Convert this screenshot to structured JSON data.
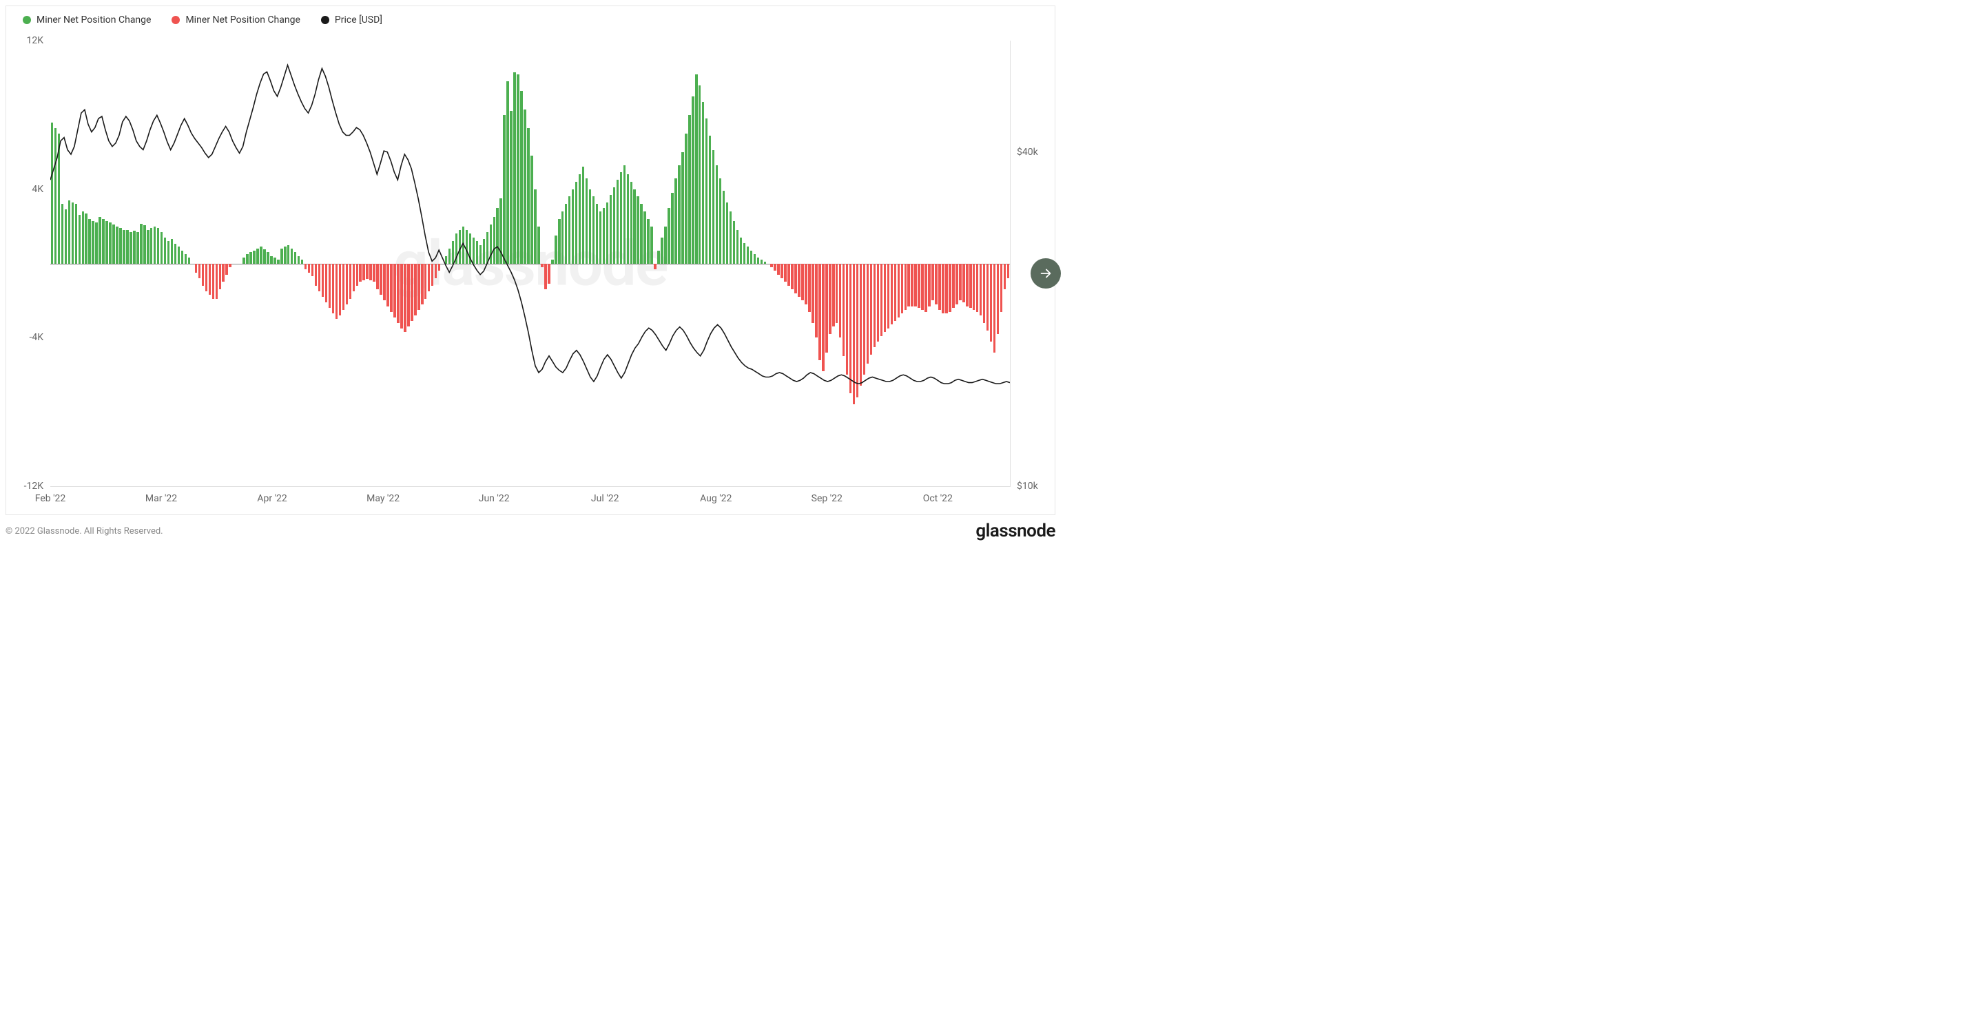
{
  "legend": {
    "items": [
      {
        "label": "Miner Net Position Change",
        "color": "#4caf50"
      },
      {
        "label": "Miner Net Position Change",
        "color": "#ef5350"
      },
      {
        "label": "Price [USD]",
        "color": "#1a1a1a"
      }
    ]
  },
  "chart": {
    "type": "bar+line",
    "background_color": "#ffffff",
    "border_color": "#e6e6e6",
    "watermark_text": "glassnode",
    "watermark_color": "#f1f1f1",
    "zero_line_color": "#888888",
    "left_axis": {
      "min": -12000,
      "max": 12000,
      "ticks": [
        {
          "value": 12000,
          "label": "12K"
        },
        {
          "value": 4000,
          "label": "4K"
        },
        {
          "value": -4000,
          "label": "-4K"
        },
        {
          "value": -12000,
          "label": "-12K"
        }
      ],
      "tick_color": "#666666",
      "tick_fontsize": 14
    },
    "right_axis": {
      "min": 10000,
      "max": 50000,
      "ticks": [
        {
          "value": 40000,
          "label": "$40k"
        },
        {
          "value": 10000,
          "label": "$10k"
        }
      ],
      "tick_color": "#666666",
      "tick_fontsize": 14
    },
    "x_axis": {
      "labels": [
        "Feb '22",
        "Mar '22",
        "Apr '22",
        "May '22",
        "Jun '22",
        "Jul '22",
        "Aug '22",
        "Sep '22",
        "Oct '22"
      ],
      "count_days": 260,
      "tick_color": "#666666",
      "tick_fontsize": 14
    },
    "bar_colors": {
      "positive": "#4caf50",
      "negative": "#ef5350"
    },
    "bar_values": [
      7600,
      7300,
      7000,
      3200,
      2900,
      3400,
      3300,
      3200,
      2600,
      2800,
      2700,
      2400,
      2300,
      2200,
      2500,
      2400,
      2300,
      2200,
      2100,
      2000,
      1900,
      1800,
      1800,
      1700,
      1750,
      1700,
      2150,
      2050,
      1800,
      1900,
      2000,
      1900,
      1700,
      1400,
      1200,
      1300,
      1050,
      900,
      700,
      500,
      300,
      0,
      -500,
      -800,
      -1200,
      -1500,
      -1700,
      -1900,
      -1900,
      -1400,
      -1000,
      -600,
      -200,
      0,
      0,
      0,
      300,
      500,
      600,
      700,
      800,
      900,
      750,
      600,
      400,
      300,
      200,
      800,
      900,
      1000,
      800,
      600,
      400,
      200,
      -300,
      -500,
      -700,
      -1200,
      -1500,
      -1800,
      -2100,
      -2400,
      -2700,
      -3000,
      -2800,
      -2500,
      -2200,
      -1900,
      -1500,
      -1200,
      -1000,
      -900,
      -850,
      -900,
      -1000,
      -1400,
      -1700,
      -2000,
      -2300,
      -2600,
      -2900,
      -3200,
      -3500,
      -3700,
      -3400,
      -3100,
      -2800,
      -2500,
      -2200,
      -1900,
      -1500,
      -1200,
      -800,
      -400,
      0,
      400,
      800,
      1200,
      1600,
      1800,
      2000,
      1800,
      1600,
      1400,
      1200,
      1000,
      1300,
      1700,
      2100,
      2500,
      3000,
      3500,
      8000,
      9800,
      8200,
      10300,
      10200,
      9300,
      8300,
      7300,
      5800,
      4000,
      2000,
      -200,
      -1400,
      -1100,
      200,
      1500,
      2400,
      2800,
      3200,
      3600,
      4000,
      4400,
      4800,
      5200,
      4600,
      4000,
      3600,
      3200,
      2800,
      3000,
      3300,
      3700,
      4100,
      4500,
      4900,
      5300,
      4800,
      4400,
      4000,
      3600,
      3200,
      2800,
      2400,
      2000,
      -300,
      700,
      1400,
      2000,
      3000,
      3800,
      4600,
      5300,
      6000,
      7000,
      8000,
      9000,
      10200,
      9600,
      8700,
      7800,
      6900,
      6100,
      5300,
      4600,
      3900,
      3300,
      2800,
      2300,
      1800,
      1400,
      1100,
      900,
      700,
      500,
      300,
      200,
      100,
      0,
      -200,
      -400,
      -600,
      -800,
      -1000,
      -1200,
      -1400,
      -1600,
      -1800,
      -2000,
      -2200,
      -2600,
      -3200,
      -4000,
      -5200,
      -5800,
      -4800,
      -3800,
      -3400,
      -3200,
      -4000,
      -5000,
      -6000,
      -7000,
      -7600,
      -7200,
      -6600,
      -6000,
      -5400,
      -4900,
      -4500,
      -4200,
      -3900,
      -3700,
      -3500,
      -3300,
      -3100,
      -2900,
      -2700,
      -2500,
      -2300,
      -2300,
      -2300,
      -2400,
      -2500,
      -2600,
      -2300,
      -2000,
      -2200,
      -2500,
      -2700,
      -2700,
      -2600,
      -2400,
      -2200,
      -2000,
      -2100,
      -2300,
      -2400,
      -2500,
      -2600,
      -2800,
      -3200,
      -3600,
      -4200,
      -4800,
      -3800,
      -2600,
      -1400,
      -800
    ],
    "price_values": [
      37500,
      38500,
      39500,
      41000,
      41300,
      40200,
      39800,
      40500,
      42000,
      43500,
      43800,
      42500,
      41800,
      42200,
      43000,
      43200,
      42000,
      41000,
      40500,
      40800,
      41500,
      42700,
      43200,
      42800,
      42000,
      41000,
      40500,
      40200,
      41000,
      42000,
      42800,
      43300,
      42600,
      41800,
      40900,
      40200,
      40800,
      41600,
      42400,
      43000,
      42400,
      41700,
      41200,
      40800,
      40400,
      39900,
      39500,
      39800,
      40500,
      41200,
      41800,
      42300,
      41800,
      41000,
      40400,
      39900,
      40500,
      41800,
      42900,
      44000,
      45200,
      46200,
      47000,
      47200,
      46400,
      45500,
      45000,
      45800,
      46800,
      47800,
      46900,
      46000,
      45200,
      44500,
      43900,
      43500,
      44200,
      45200,
      46500,
      47500,
      46800,
      45800,
      44600,
      43500,
      42500,
      41800,
      41500,
      41500,
      41800,
      42200,
      42000,
      41500,
      40800,
      40000,
      39000,
      38000,
      39000,
      40100,
      40000,
      39200,
      38200,
      37500,
      38800,
      39800,
      39300,
      38500,
      37200,
      35800,
      34200,
      32500,
      31000,
      30200,
      30500,
      31200,
      30500,
      29800,
      29200,
      29800,
      30500,
      31200,
      31800,
      31200,
      30500,
      29900,
      29400,
      29000,
      29300,
      30000,
      30700,
      31300,
      31500,
      31000,
      30400,
      29800,
      29200,
      28500,
      27600,
      26500,
      25200,
      23800,
      22200,
      20800,
      20200,
      20500,
      21200,
      21700,
      21200,
      20700,
      20400,
      20200,
      20600,
      21300,
      21900,
      22200,
      21800,
      21200,
      20500,
      19800,
      19400,
      19900,
      20700,
      21400,
      21800,
      21400,
      20800,
      20200,
      19700,
      20200,
      21000,
      21800,
      22400,
      22800,
      23400,
      23900,
      24200,
      24000,
      23600,
      23100,
      22600,
      22200,
      22800,
      23500,
      24000,
      24300,
      24000,
      23500,
      22900,
      22400,
      22000,
      21700,
      22200,
      23000,
      23700,
      24200,
      24500,
      24200,
      23700,
      23100,
      22500,
      22000,
      21500,
      21100,
      20800,
      20600,
      20500,
      20300,
      20100,
      19900,
      19800,
      19800,
      19900,
      20100,
      20200,
      20100,
      19900,
      19700,
      19500,
      19400,
      19500,
      19700,
      20000,
      20200,
      20100,
      19900,
      19700,
      19500,
      19400,
      19500,
      19700,
      19900,
      20000,
      19900,
      19700,
      19500,
      19300,
      19200,
      19300,
      19500,
      19700,
      19800,
      19700,
      19600,
      19500,
      19400,
      19400,
      19500,
      19700,
      19900,
      20000,
      19900,
      19700,
      19500,
      19400,
      19400,
      19500,
      19700,
      19800,
      19700,
      19500,
      19300,
      19200,
      19200,
      19300,
      19500,
      19600,
      19500,
      19400,
      19300,
      19300,
      19400,
      19500,
      19600,
      19500,
      19400,
      19300,
      19200,
      19200,
      19300,
      19400,
      19300
    ],
    "price_line_color": "#1a1a1a",
    "price_line_width": 1.6
  },
  "footer": {
    "copyright": "© 2022 Glassnode. All Rights Reserved.",
    "brand": "glassnode"
  },
  "nav_arrow": {
    "bg_color": "#5a6b5d",
    "icon_color": "#ffffff"
  }
}
